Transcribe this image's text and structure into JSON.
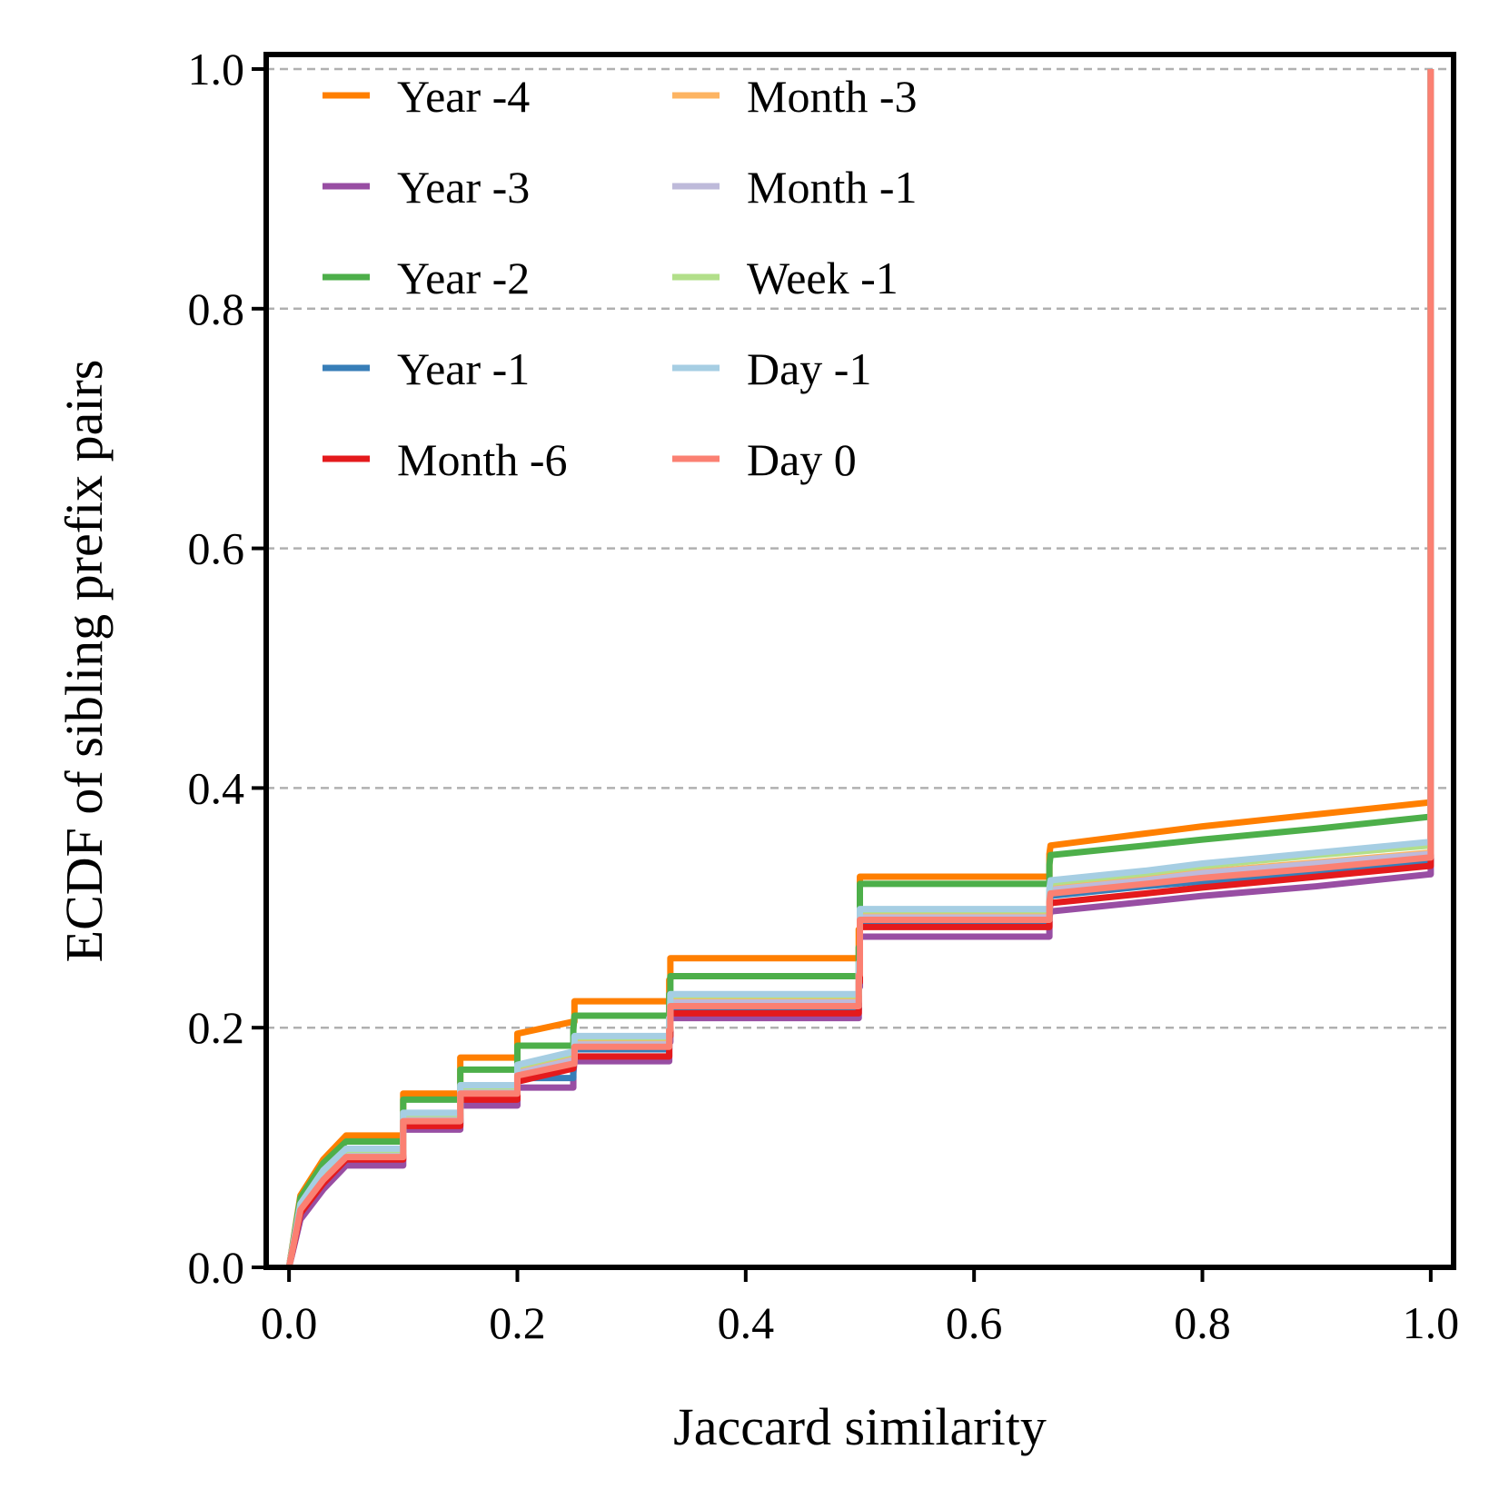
{
  "chart_data": {
    "type": "line",
    "title": "",
    "xlabel": "Jaccard similarity",
    "ylabel": "ECDF of sibling prefix pairs",
    "xlim": [
      -0.02,
      1.02
    ],
    "ylim": [
      0.0,
      1.0
    ],
    "xticks": [
      "0.0",
      "0.2",
      "0.4",
      "0.6",
      "0.8",
      "1.0"
    ],
    "xtick_values": [
      0.0,
      0.2,
      0.4,
      0.6,
      0.8,
      1.0
    ],
    "yticks": [
      "0.0",
      "0.2",
      "0.4",
      "0.6",
      "0.8",
      "1.0"
    ],
    "ytick_values": [
      0.0,
      0.2,
      0.4,
      0.6,
      0.8,
      1.0
    ],
    "grid": "horizontal dashed",
    "legend_position": "upper-left, two columns",
    "x": [
      0.0,
      0.01,
      0.03,
      0.05,
      0.1,
      0.15,
      0.2,
      0.249,
      0.25,
      0.333,
      0.334,
      0.499,
      0.5,
      0.666,
      0.667,
      0.75,
      0.8,
      0.9,
      0.999,
      1.0
    ],
    "series": [
      {
        "name": "Year -4",
        "color": "#ff7f00",
        "values": [
          0.0,
          0.06,
          0.09,
          0.11,
          0.145,
          0.175,
          0.195,
          0.205,
          0.222,
          0.24,
          0.258,
          0.282,
          0.326,
          0.345,
          0.352,
          0.362,
          0.368,
          0.378,
          0.388,
          1.0
        ]
      },
      {
        "name": "Year -3",
        "color": "#984ea3",
        "values": [
          0.0,
          0.04,
          0.065,
          0.085,
          0.115,
          0.135,
          0.15,
          0.162,
          0.172,
          0.188,
          0.208,
          0.234,
          0.276,
          0.292,
          0.297,
          0.305,
          0.31,
          0.318,
          0.328,
          1.0
        ]
      },
      {
        "name": "Year -2",
        "color": "#4daf4a",
        "values": [
          0.0,
          0.058,
          0.087,
          0.105,
          0.14,
          0.165,
          0.185,
          0.198,
          0.21,
          0.228,
          0.243,
          0.267,
          0.32,
          0.336,
          0.344,
          0.352,
          0.357,
          0.366,
          0.376,
          1.0
        ]
      },
      {
        "name": "Year -1",
        "color": "#377eb8",
        "values": [
          0.0,
          0.05,
          0.075,
          0.092,
          0.12,
          0.142,
          0.158,
          0.17,
          0.182,
          0.196,
          0.215,
          0.242,
          0.288,
          0.303,
          0.31,
          0.318,
          0.322,
          0.33,
          0.338,
          1.0
        ]
      },
      {
        "name": "Month -6",
        "color": "#e41a1c",
        "values": [
          0.0,
          0.045,
          0.07,
          0.09,
          0.118,
          0.14,
          0.155,
          0.166,
          0.176,
          0.193,
          0.212,
          0.238,
          0.284,
          0.298,
          0.304,
          0.312,
          0.317,
          0.326,
          0.335,
          1.0
        ]
      },
      {
        "name": "Month -3",
        "color": "#fdb462",
        "values": [
          0.0,
          0.05,
          0.077,
          0.095,
          0.125,
          0.148,
          0.163,
          0.174,
          0.187,
          0.202,
          0.222,
          0.248,
          0.293,
          0.309,
          0.316,
          0.324,
          0.33,
          0.338,
          0.346,
          1.0
        ]
      },
      {
        "name": "Month -1",
        "color": "#bebada",
        "values": [
          0.0,
          0.05,
          0.076,
          0.094,
          0.124,
          0.147,
          0.162,
          0.173,
          0.186,
          0.201,
          0.221,
          0.247,
          0.292,
          0.308,
          0.315,
          0.323,
          0.329,
          0.337,
          0.345,
          1.0
        ]
      },
      {
        "name": "Week -1",
        "color": "#b2df8a",
        "values": [
          0.0,
          0.052,
          0.08,
          0.098,
          0.128,
          0.151,
          0.168,
          0.179,
          0.192,
          0.207,
          0.227,
          0.253,
          0.298,
          0.314,
          0.321,
          0.329,
          0.335,
          0.344,
          0.352,
          1.0
        ]
      },
      {
        "name": "Day -1",
        "color": "#a6cee3",
        "values": [
          0.0,
          0.053,
          0.081,
          0.099,
          0.129,
          0.152,
          0.169,
          0.18,
          0.193,
          0.208,
          0.228,
          0.254,
          0.299,
          0.316,
          0.323,
          0.331,
          0.337,
          0.346,
          0.355,
          1.0
        ]
      },
      {
        "name": "Day 0",
        "color": "#fb8072",
        "values": [
          0.0,
          0.048,
          0.073,
          0.092,
          0.122,
          0.145,
          0.16,
          0.17,
          0.184,
          0.198,
          0.218,
          0.244,
          0.29,
          0.305,
          0.312,
          0.32,
          0.325,
          0.333,
          0.342,
          1.0
        ]
      }
    ]
  }
}
